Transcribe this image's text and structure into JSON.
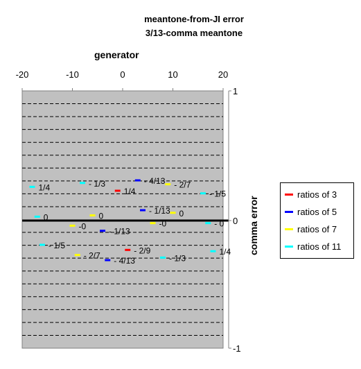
{
  "chart_data": {
    "type": "scatter",
    "title": "meantone-from-JI error",
    "subtitle": "3/13-comma meantone",
    "xlabel": "generator",
    "ylabel": "comma error",
    "xlim": [
      -20,
      20
    ],
    "ylim": [
      -1,
      1
    ],
    "x_ticks": [
      "-20",
      "-10",
      "0",
      "10",
      "20"
    ],
    "y_ticks": [
      "1",
      "0",
      "-1"
    ],
    "grid": "dashed horizontal",
    "legend_position": "right",
    "series": [
      {
        "name": "ratios of 3",
        "color": "#ff0000",
        "points": [
          {
            "x": -1,
            "y": 0.23,
            "label": "1/4"
          },
          {
            "x": 1,
            "y": -0.23,
            "label": "- 2/9"
          }
        ]
      },
      {
        "name": "ratios of 5",
        "color": "#0000ff",
        "points": [
          {
            "x": 3,
            "y": 0.31,
            "label": "- 4/13"
          },
          {
            "x": 4,
            "y": 0.08,
            "label": "- 1/13"
          },
          {
            "x": -4,
            "y": -0.08,
            "label": "- 1/13"
          },
          {
            "x": -3,
            "y": -0.31,
            "label": "- 4/13"
          }
        ]
      },
      {
        "name": "ratios of 7",
        "color": "#ffff00",
        "points": [
          {
            "x": 9,
            "y": 0.28,
            "label": "- 2/7"
          },
          {
            "x": 10,
            "y": 0.06,
            "label": "0"
          },
          {
            "x": -6,
            "y": 0.04,
            "label": "0"
          },
          {
            "x": 6,
            "y": -0.02,
            "label": "-0"
          },
          {
            "x": -10,
            "y": -0.04,
            "label": "-0"
          },
          {
            "x": -9,
            "y": -0.27,
            "label": "- 2/7"
          }
        ]
      },
      {
        "name": "ratios of 11",
        "color": "#00ffff",
        "points": [
          {
            "x": -8,
            "y": 0.29,
            "label": "- 1/3"
          },
          {
            "x": -18,
            "y": 0.26,
            "label": "1/4"
          },
          {
            "x": 16,
            "y": 0.21,
            "label": "- 1/5"
          },
          {
            "x": -17,
            "y": 0.03,
            "label": "0"
          },
          {
            "x": 17,
            "y": -0.02,
            "label": "- 0"
          },
          {
            "x": -16,
            "y": -0.19,
            "label": "- 1/5"
          },
          {
            "x": 18,
            "y": -0.24,
            "label": "1/4"
          },
          {
            "x": 8,
            "y": -0.29,
            "label": "- 1/3"
          }
        ]
      }
    ]
  }
}
